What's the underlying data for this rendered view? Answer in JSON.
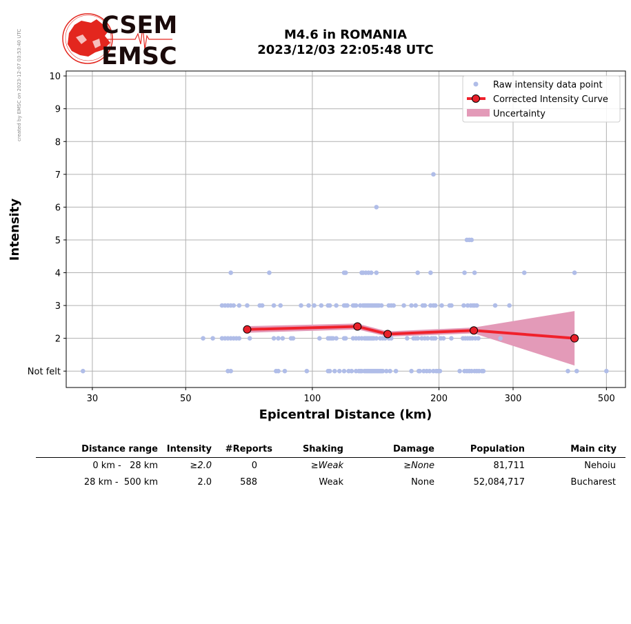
{
  "side_note": "created by EMSC on 2023-12-07 03:53:40 UTC",
  "logo": {
    "top": "CSEM",
    "bottom": "EMSC"
  },
  "colors": {
    "raw": "#b0bde8",
    "curve": "#f0212b",
    "marker": "#e8202a",
    "uncertainty": "#e39ab8",
    "logo": "#e3261e",
    "grid": "#b0b0b0"
  },
  "chart_data": {
    "type": "scatter",
    "title": "M4.6 in ROMANIA",
    "subtitle": "2023/12/03 22:05:48 UTC",
    "xlabel": "Epicentral Distance (km)",
    "ylabel": "Intensity",
    "x_scale": "log",
    "xlim": [
      26,
      555
    ],
    "ylim": [
      0.5,
      10.15
    ],
    "x_ticks": [
      30,
      50,
      100,
      200,
      300,
      500
    ],
    "y_ticks": [
      1,
      2,
      3,
      4,
      5,
      6,
      7,
      8,
      9,
      10
    ],
    "y_tick_labels": [
      "Not felt",
      "2",
      "3",
      "4",
      "5",
      "6",
      "7",
      "8",
      "9",
      "10"
    ],
    "grid": true,
    "legend_position": "top-right",
    "legend": [
      "Raw intensity data point",
      "Corrected Intensity Curve",
      "Uncertainty"
    ],
    "raw_points": [
      [
        28.5,
        1
      ],
      [
        63,
        1
      ],
      [
        64,
        1
      ],
      [
        82,
        1
      ],
      [
        83,
        1
      ],
      [
        86,
        1
      ],
      [
        97,
        1
      ],
      [
        109,
        1
      ],
      [
        110,
        1
      ],
      [
        113,
        1
      ],
      [
        116,
        1
      ],
      [
        119,
        1
      ],
      [
        122,
        1
      ],
      [
        124,
        1
      ],
      [
        127,
        1
      ],
      [
        129,
        1
      ],
      [
        130,
        1
      ],
      [
        131,
        1
      ],
      [
        133,
        1
      ],
      [
        134,
        1
      ],
      [
        135,
        1
      ],
      [
        136,
        1
      ],
      [
        137,
        1
      ],
      [
        138,
        1
      ],
      [
        139,
        1
      ],
      [
        140,
        1
      ],
      [
        141,
        1
      ],
      [
        142,
        1
      ],
      [
        143,
        1
      ],
      [
        144,
        1
      ],
      [
        145,
        1
      ],
      [
        146,
        1
      ],
      [
        147,
        1
      ],
      [
        150,
        1
      ],
      [
        153,
        1
      ],
      [
        158,
        1
      ],
      [
        172,
        1
      ],
      [
        179,
        1
      ],
      [
        180,
        1
      ],
      [
        184,
        1
      ],
      [
        187,
        1
      ],
      [
        190,
        1
      ],
      [
        194,
        1
      ],
      [
        197,
        1
      ],
      [
        199,
        1
      ],
      [
        201,
        1
      ],
      [
        224,
        1
      ],
      [
        230,
        1
      ],
      [
        233,
        1
      ],
      [
        236,
        1
      ],
      [
        239,
        1
      ],
      [
        243,
        1
      ],
      [
        246,
        1
      ],
      [
        249,
        1
      ],
      [
        253,
        1
      ],
      [
        255,
        1
      ],
      [
        405,
        1
      ],
      [
        425,
        1
      ],
      [
        500,
        1
      ],
      [
        55,
        2
      ],
      [
        58,
        2
      ],
      [
        61,
        2
      ],
      [
        62,
        2
      ],
      [
        63,
        2
      ],
      [
        64,
        2
      ],
      [
        65,
        2
      ],
      [
        66,
        2
      ],
      [
        67,
        2
      ],
      [
        71,
        2
      ],
      [
        81,
        2
      ],
      [
        83,
        2
      ],
      [
        85,
        2
      ],
      [
        89,
        2
      ],
      [
        90,
        2
      ],
      [
        104,
        2
      ],
      [
        109,
        2
      ],
      [
        110,
        2
      ],
      [
        111,
        2
      ],
      [
        112,
        2
      ],
      [
        114,
        2
      ],
      [
        119,
        2
      ],
      [
        120,
        2
      ],
      [
        125,
        2
      ],
      [
        127,
        2
      ],
      [
        129,
        2
      ],
      [
        131,
        2
      ],
      [
        133,
        2
      ],
      [
        134,
        2
      ],
      [
        135,
        2
      ],
      [
        136,
        2
      ],
      [
        137,
        2
      ],
      [
        138,
        2
      ],
      [
        139,
        2
      ],
      [
        140,
        2
      ],
      [
        142,
        2
      ],
      [
        145,
        2
      ],
      [
        147,
        2
      ],
      [
        149,
        2
      ],
      [
        152,
        2
      ],
      [
        154,
        2
      ],
      [
        168,
        2
      ],
      [
        174,
        2
      ],
      [
        176,
        2
      ],
      [
        178,
        2
      ],
      [
        182,
        2
      ],
      [
        185,
        2
      ],
      [
        188,
        2
      ],
      [
        192,
        2
      ],
      [
        194,
        2
      ],
      [
        196,
        2
      ],
      [
        202,
        2
      ],
      [
        205,
        2
      ],
      [
        214,
        2
      ],
      [
        228,
        2
      ],
      [
        231,
        2
      ],
      [
        234,
        2
      ],
      [
        237,
        2
      ],
      [
        240,
        2
      ],
      [
        244,
        2
      ],
      [
        248,
        2
      ],
      [
        280,
        2
      ],
      [
        61,
        3
      ],
      [
        62,
        3
      ],
      [
        63,
        3
      ],
      [
        64,
        3
      ],
      [
        65,
        3
      ],
      [
        67,
        3
      ],
      [
        70,
        3
      ],
      [
        75,
        3
      ],
      [
        76,
        3
      ],
      [
        81,
        3
      ],
      [
        84,
        3
      ],
      [
        94,
        3
      ],
      [
        98,
        3
      ],
      [
        101,
        3
      ],
      [
        105,
        3
      ],
      [
        109,
        3
      ],
      [
        110,
        3
      ],
      [
        114,
        3
      ],
      [
        119,
        3
      ],
      [
        120,
        3
      ],
      [
        121,
        3
      ],
      [
        125,
        3
      ],
      [
        126,
        3
      ],
      [
        127,
        3
      ],
      [
        130,
        3
      ],
      [
        132,
        3
      ],
      [
        133,
        3
      ],
      [
        134,
        3
      ],
      [
        135,
        3
      ],
      [
        136,
        3
      ],
      [
        137,
        3
      ],
      [
        138,
        3
      ],
      [
        139,
        3
      ],
      [
        140,
        3
      ],
      [
        141,
        3
      ],
      [
        142,
        3
      ],
      [
        143,
        3
      ],
      [
        144,
        3
      ],
      [
        146,
        3
      ],
      [
        152,
        3
      ],
      [
        154,
        3
      ],
      [
        156,
        3
      ],
      [
        165,
        3
      ],
      [
        172,
        3
      ],
      [
        176,
        3
      ],
      [
        183,
        3
      ],
      [
        185,
        3
      ],
      [
        191,
        3
      ],
      [
        194,
        3
      ],
      [
        196,
        3
      ],
      [
        203,
        3
      ],
      [
        212,
        3
      ],
      [
        214,
        3
      ],
      [
        229,
        3
      ],
      [
        234,
        3
      ],
      [
        238,
        3
      ],
      [
        241,
        3
      ],
      [
        243,
        3
      ],
      [
        246,
        3
      ],
      [
        272,
        3
      ],
      [
        294,
        3
      ],
      [
        64,
        4
      ],
      [
        79,
        4
      ],
      [
        119,
        4
      ],
      [
        120,
        4
      ],
      [
        131,
        4
      ],
      [
        132,
        4
      ],
      [
        134,
        4
      ],
      [
        136,
        4
      ],
      [
        138,
        4
      ],
      [
        142,
        4
      ],
      [
        178,
        4
      ],
      [
        191,
        4
      ],
      [
        230,
        4
      ],
      [
        243,
        4
      ],
      [
        319,
        4
      ],
      [
        420,
        4
      ],
      [
        233,
        5
      ],
      [
        236,
        5
      ],
      [
        239,
        5
      ],
      [
        142,
        6
      ],
      [
        194,
        7
      ]
    ],
    "curve": [
      [
        70,
        2.27
      ],
      [
        128,
        2.36
      ],
      [
        151,
        2.13
      ],
      [
        242,
        2.24
      ],
      [
        420,
        2.0
      ]
    ],
    "uncertainty": [
      [
        70,
        2.37,
        2.17
      ],
      [
        128,
        2.45,
        2.27
      ],
      [
        151,
        2.21,
        2.05
      ],
      [
        242,
        2.33,
        2.15
      ],
      [
        420,
        2.83,
        1.17
      ]
    ]
  },
  "table": {
    "headers": [
      "Distance range",
      "Intensity",
      "#Reports",
      "Shaking",
      "Damage",
      "Population",
      "Main city"
    ],
    "rows": [
      {
        "range": "0 km -   28 km",
        "intensity": "≥2.0",
        "reports": "0",
        "shaking": "≥Weak",
        "damage": "≥None",
        "population": "81,711",
        "city": "Nehoiu"
      },
      {
        "range": "28 km -  500 km",
        "intensity": "2.0",
        "reports": "588",
        "shaking": "Weak",
        "damage": "None",
        "population": "52,084,717",
        "city": "Bucharest"
      }
    ]
  }
}
